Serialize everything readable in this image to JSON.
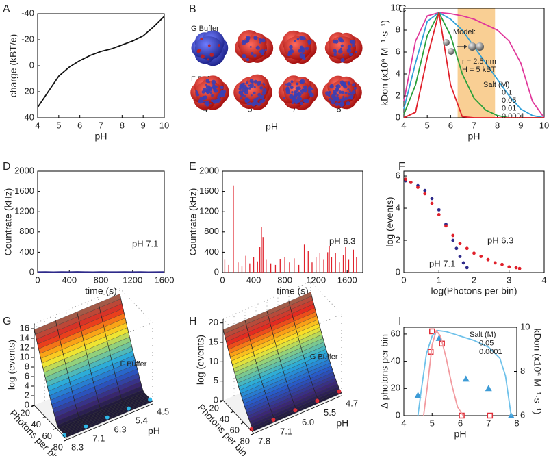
{
  "chart_data": [
    {
      "type": "line",
      "panel": "A",
      "xlabel": "pH",
      "ylabel": "charge (kBT/e)",
      "xlim": [
        4,
        10
      ],
      "ylim": [
        40,
        -40
      ],
      "xticks": [
        4,
        5,
        6,
        7,
        8,
        9,
        10
      ],
      "yticks": [
        -40,
        -20,
        0,
        20,
        40
      ],
      "x": [
        4,
        4.5,
        5,
        5.5,
        6,
        6.5,
        7,
        7.5,
        8,
        8.5,
        9,
        9.5,
        10
      ],
      "series": [
        {
          "color": "#111111",
          "values": [
            32,
            20,
            8,
            1,
            -4,
            -8,
            -11,
            -13,
            -16,
            -19,
            -23,
            -30,
            -38
          ]
        }
      ]
    },
    {
      "type": "image-grid",
      "panel": "B",
      "rows": [
        "G Buffer",
        "F Buffer"
      ],
      "categories": [
        "4",
        "5",
        "7",
        "8"
      ],
      "xlabel": "pH"
    },
    {
      "type": "line",
      "panel": "C",
      "xlabel": "pH",
      "ylabel": "kDon (x10⁹ M⁻¹·s⁻¹)",
      "xlim": [
        4,
        10
      ],
      "ylim": [
        0,
        10
      ],
      "xticks": [
        4,
        5,
        6,
        7,
        8,
        9,
        10
      ],
      "yticks": [
        0,
        2,
        4,
        6,
        8,
        10
      ],
      "highlight": [
        6.3,
        7.9
      ],
      "highlight_color": "#f9cf94",
      "annotations": [
        {
          "text": "Model:"
        },
        {
          "text": "r = 2.5 nm"
        },
        {
          "text": "H = 5 kBT"
        }
      ],
      "legend_title": "Salt (M)",
      "x": [
        4,
        4.5,
        5,
        5.5,
        6,
        6.5,
        7,
        7.5,
        8,
        8.5,
        9,
        9.5,
        10
      ],
      "series": [
        {
          "name": "0.1",
          "color": "#e0379a",
          "values": [
            1.5,
            7,
            9.3,
            9.6,
            9.5,
            9.3,
            9,
            8.5,
            8,
            7,
            5,
            1.5,
            0
          ]
        },
        {
          "name": "0.05",
          "color": "#2fa0d8",
          "values": [
            0.8,
            5,
            8.8,
            9.6,
            9,
            8,
            6.5,
            5,
            3.5,
            2,
            0.8,
            0.2,
            0
          ]
        },
        {
          "name": "0.01",
          "color": "#2aa03a",
          "values": [
            0.3,
            3,
            7.5,
            9.6,
            7.5,
            4,
            1.8,
            0.7,
            0.2,
            0,
            0,
            0,
            0
          ]
        },
        {
          "name": "0.0001",
          "color": "#e0202a",
          "values": [
            0,
            0.5,
            5.5,
            9.6,
            3,
            0.1,
            0,
            0,
            0,
            0,
            0,
            0,
            0
          ]
        }
      ]
    },
    {
      "type": "line",
      "panel": "D",
      "xlabel": "time (s)",
      "ylabel": "Countrate (kHz)",
      "xlim": [
        0,
        1600
      ],
      "ylim": [
        0,
        2000
      ],
      "xticks": [
        0,
        400,
        800,
        1200,
        1600
      ],
      "yticks": [
        0,
        400,
        800,
        1200,
        1600,
        2000
      ],
      "annotations": [
        {
          "text": "pH 7.1",
          "color": "#2e2a8a"
        }
      ],
      "x": [
        0,
        100,
        200,
        300,
        400,
        500,
        600,
        700,
        800,
        900,
        1000,
        1100,
        1200,
        1300,
        1400,
        1500,
        1600
      ],
      "series": [
        {
          "color": "#2e2a8a",
          "values": [
            10,
            12,
            8,
            11,
            9,
            13,
            10,
            8,
            12,
            10,
            9,
            11,
            10,
            12,
            8,
            10,
            11
          ]
        }
      ]
    },
    {
      "type": "spike",
      "panel": "E",
      "xlabel": "time (s)",
      "ylabel": "Countrate (kHz)",
      "xlim": [
        0,
        1800
      ],
      "ylim": [
        0,
        2000
      ],
      "xticks": [
        0,
        400,
        800,
        1200,
        1600
      ],
      "yticks": [
        0,
        400,
        800,
        1200,
        1600,
        2000
      ],
      "annotations": [
        {
          "text": "pH 6.3",
          "color": "#e0202a"
        }
      ],
      "x": [
        30,
        80,
        140,
        200,
        250,
        300,
        350,
        400,
        450,
        480,
        500,
        520,
        560,
        620,
        680,
        740,
        800,
        860,
        920,
        980,
        1050,
        1100,
        1150,
        1200,
        1250,
        1300,
        1350,
        1370,
        1400,
        1450,
        1500,
        1550,
        1580,
        1620,
        1680,
        1720
      ],
      "series": [
        {
          "color": "#e0202a",
          "values": [
            250,
            150,
            1720,
            200,
            120,
            330,
            180,
            300,
            220,
            500,
            900,
            700,
            250,
            180,
            150,
            260,
            300,
            200,
            280,
            150,
            550,
            420,
            200,
            300,
            380,
            250,
            400,
            520,
            300,
            380,
            200,
            350,
            500,
            250,
            450,
            300
          ]
        }
      ]
    },
    {
      "type": "scatter",
      "panel": "F",
      "xlabel": "log(Photons per bin)",
      "ylabel": "log (events)",
      "xlim": [
        0,
        4
      ],
      "ylim": [
        0,
        6.3
      ],
      "xticks": [
        0,
        1,
        2,
        3,
        4
      ],
      "yticks": [
        0,
        2,
        4,
        6
      ],
      "series": [
        {
          "name": "pH 7.1",
          "color": "#2e2a8a",
          "x": [
            0.05,
            0.2,
            0.4,
            0.6,
            0.8,
            1.0,
            1.2,
            1.4,
            1.5,
            1.6,
            1.7,
            1.8
          ],
          "values": [
            5.7,
            5.6,
            5.4,
            5.1,
            4.6,
            3.9,
            3.0,
            2.0,
            1.5,
            1.0,
            0.6,
            0.3
          ]
        },
        {
          "name": "pH 6.3",
          "color": "#e0202a",
          "x": [
            0.05,
            0.2,
            0.4,
            0.6,
            0.8,
            1.0,
            1.2,
            1.4,
            1.6,
            1.8,
            2.0,
            2.2,
            2.4,
            2.6,
            2.8,
            3.0,
            3.2,
            3.3
          ],
          "values": [
            5.8,
            5.6,
            5.3,
            4.9,
            4.3,
            3.6,
            2.9,
            2.3,
            1.8,
            1.5,
            1.2,
            1.0,
            0.8,
            0.6,
            0.5,
            0.35,
            0.3,
            0.25
          ]
        }
      ]
    },
    {
      "type": "surface3d",
      "panel": "G",
      "label": "F Buffer",
      "zlabel": "log (events)",
      "xlabel": "Photons per bin",
      "ylabel": "pH",
      "zlim": [
        0,
        17
      ],
      "zticks": [
        0,
        2,
        4,
        6,
        8,
        10,
        12,
        14,
        16
      ],
      "xlim": [
        20,
        80
      ],
      "xticks": [
        20,
        40,
        60,
        80
      ],
      "categories": [
        "8.3",
        "7.1",
        "6.3",
        "5.4",
        "4.5"
      ]
    },
    {
      "type": "surface3d",
      "panel": "H",
      "label": "G Buffer",
      "zlabel": "log (events)",
      "xlabel": "Photons per bin",
      "ylabel": "pH",
      "zlim": [
        0,
        21
      ],
      "zticks": [
        0,
        5,
        10,
        15,
        20
      ],
      "xlim": [
        20,
        80
      ],
      "xticks": [
        20,
        40,
        60,
        80
      ],
      "categories": [
        "7.8",
        "7.1",
        "6.0",
        "5.5",
        "4.7"
      ]
    },
    {
      "type": "combo",
      "panel": "I",
      "xlabel": "pH",
      "ylabel": "Δ photons per bin",
      "y2label": "kDon (x10⁹ M⁻¹·s⁻¹)",
      "xlim": [
        4,
        8
      ],
      "ylim": [
        0,
        65
      ],
      "y2lim": [
        6,
        10
      ],
      "xticks": [
        4,
        5,
        6,
        7,
        8
      ],
      "yticks": [
        0,
        20,
        40,
        60
      ],
      "y2ticks": [
        6,
        8,
        10
      ],
      "legend_title": "Salt (M)",
      "series": [
        {
          "name": "0.05",
          "type": "scatter",
          "marker": "triangle",
          "color": "#3d9bd6",
          "x": [
            4.5,
            5.25,
            6.2,
            7,
            7.8
          ],
          "values": [
            15,
            57,
            27,
            20,
            0
          ]
        },
        {
          "name": "0.0001",
          "type": "scatter",
          "marker": "square",
          "color": "#e0303a",
          "x": [
            4.95,
            5,
            5.35,
            6.05,
            7.05
          ],
          "values": [
            47,
            62,
            53,
            0,
            0
          ]
        },
        {
          "type": "line",
          "axis": "y2",
          "color": "#6ec1ea",
          "x": [
            4.5,
            4.6,
            4.8,
            5,
            5.2,
            5.5,
            6,
            6.5,
            7,
            7.4,
            7.6,
            7.8
          ],
          "values": [
            6,
            7,
            8.8,
            9.6,
            9.85,
            9.8,
            9.6,
            9.4,
            9.1,
            8.6,
            7.8,
            6
          ]
        },
        {
          "type": "line",
          "axis": "y2",
          "color": "#f29a9f",
          "x": [
            4.7,
            4.85,
            5,
            5.15,
            5.3,
            5.5,
            5.7,
            5.9,
            6.1
          ],
          "values": [
            6,
            7.5,
            9.2,
            9.85,
            9.6,
            8.6,
            7.4,
            6.4,
            6
          ]
        }
      ]
    }
  ]
}
